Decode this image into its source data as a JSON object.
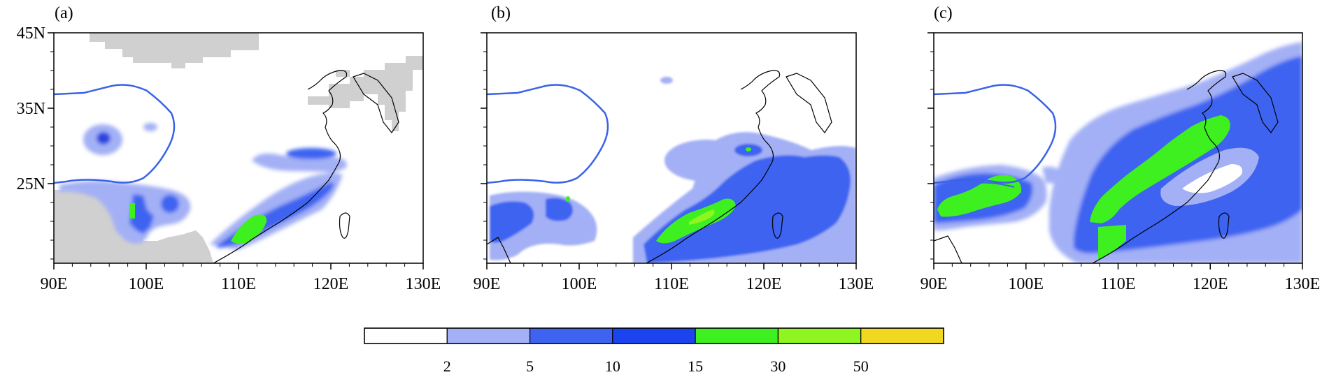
{
  "figure": {
    "panels": [
      {
        "label": "(a)"
      },
      {
        "label": "(b)"
      },
      {
        "label": "(c)"
      }
    ],
    "lat_ticks": [
      "45N",
      "35N",
      "25N"
    ],
    "lon_ticks": [
      "90E",
      "100E",
      "110E",
      "120E",
      "130E"
    ],
    "colorbar": {
      "colors": [
        "#ffffff",
        "#a3b0f5",
        "#3e63f0",
        "#1b44ee",
        "#3ff020",
        "#8ef520",
        "#f0d820"
      ],
      "labels": [
        "2",
        "5",
        "10",
        "15",
        "30",
        "50"
      ]
    }
  }
}
